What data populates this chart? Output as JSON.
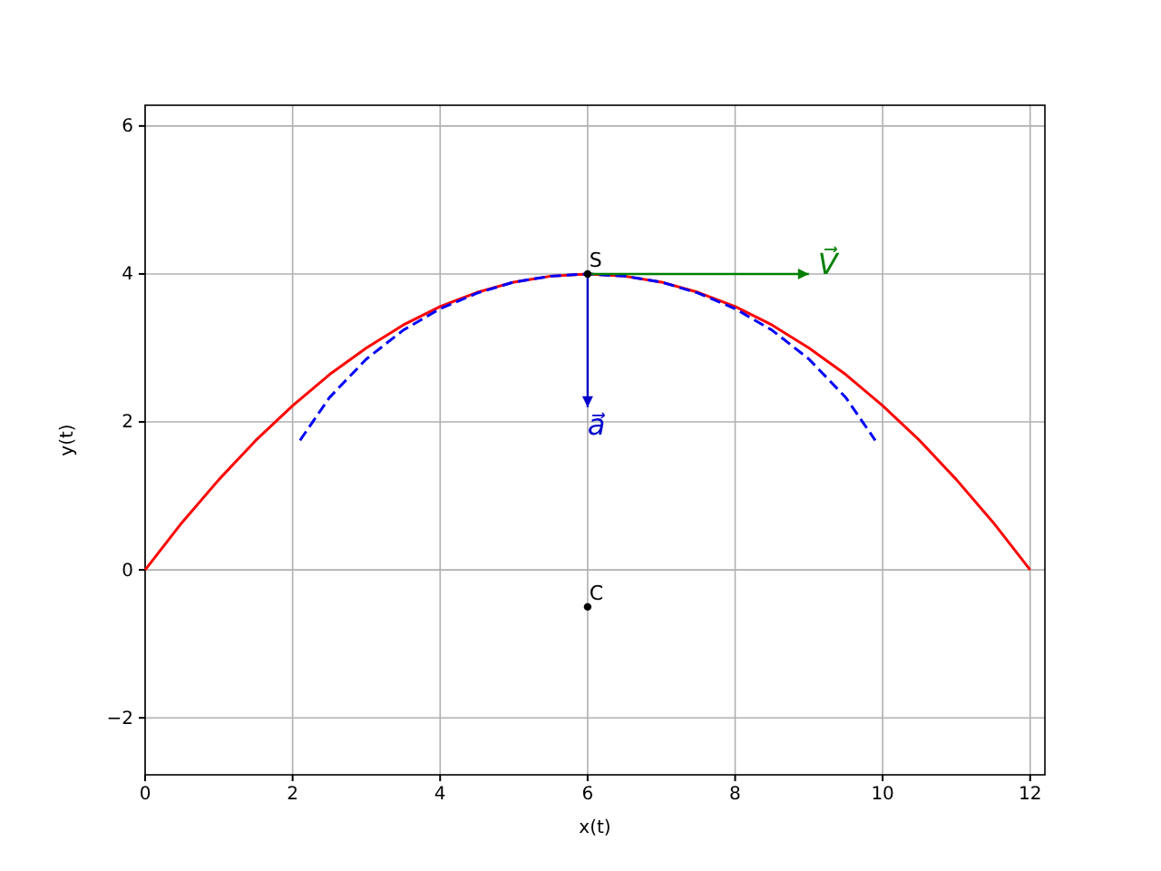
{
  "chart_data": {
    "type": "line",
    "xlabel": "x(t)",
    "ylabel": "y(t)",
    "xlim": [
      0,
      12.2
    ],
    "ylim": [
      -2.77,
      6.28
    ],
    "xticks": [
      0,
      2,
      4,
      6,
      8,
      10,
      12
    ],
    "yticks": [
      {
        "value": -2,
        "label": "−2"
      },
      0,
      2,
      4,
      6
    ],
    "grid": true,
    "series": [
      {
        "color": "#ff0000",
        "line_style": "solid",
        "x": [
          0,
          0.5,
          1,
          1.5,
          2,
          2.5,
          3,
          3.5,
          4,
          4.5,
          5,
          5.5,
          6,
          6.5,
          7,
          7.5,
          8,
          8.5,
          9,
          9.5,
          10,
          10.5,
          11,
          11.5,
          12
        ],
        "values": [
          0,
          0.64,
          1.22,
          1.75,
          2.22,
          2.64,
          3,
          3.31,
          3.56,
          3.75,
          3.89,
          3.97,
          4,
          3.97,
          3.89,
          3.75,
          3.56,
          3.31,
          3,
          2.64,
          2.22,
          1.75,
          1.22,
          0.64,
          0
        ]
      },
      {
        "color": "#0000ff",
        "line_style": "dashed",
        "x": [
          2.1,
          2.5,
          3,
          3.5,
          4,
          4.5,
          5,
          5.5,
          6,
          6.5,
          7,
          7.5,
          8,
          8.5,
          9,
          9.5,
          9.9
        ],
        "values": [
          1.75,
          2.33,
          2.85,
          3.24,
          3.53,
          3.74,
          3.89,
          3.97,
          4,
          3.97,
          3.89,
          3.74,
          3.53,
          3.24,
          2.85,
          2.33,
          1.75
        ]
      },
      {
        "name": "V⃗",
        "color": "#008000",
        "line_style": "solid",
        "x": [
          6,
          9
        ],
        "values": [
          4,
          4
        ]
      },
      {
        "name": "a⃗",
        "color": "#0000cc",
        "line_style": "solid",
        "x": [
          6,
          6
        ],
        "values": [
          4,
          2.2
        ]
      },
      {
        "type": "scatter",
        "name": "S",
        "color": "#000000",
        "marker": "circle",
        "x": [
          6
        ],
        "values": [
          4
        ]
      },
      {
        "type": "scatter",
        "name": "C",
        "color": "#000000",
        "marker": "circle",
        "x": [
          6
        ],
        "values": [
          -0.5
        ]
      }
    ]
  }
}
